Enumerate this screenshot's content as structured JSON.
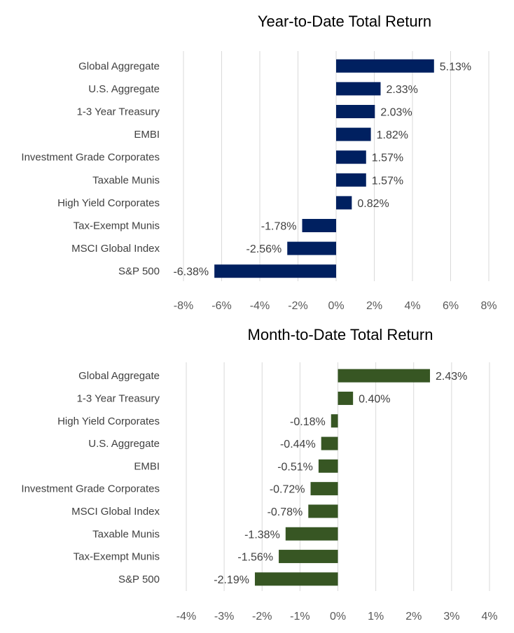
{
  "chart_data": [
    {
      "type": "bar",
      "orientation": "horizontal",
      "title": "Year-to-Date Total Return",
      "categories": [
        "Global Aggregate",
        "U.S. Aggregate",
        "1-3 Year Treasury",
        "EMBI",
        "Investment Grade Corporates",
        "Taxable Munis",
        "High Yield Corporates",
        "Tax-Exempt Munis",
        "MSCI Global Index",
        "S&P 500"
      ],
      "values": [
        5.13,
        2.33,
        2.03,
        1.82,
        1.57,
        1.57,
        0.82,
        -1.78,
        -2.56,
        -6.38
      ],
      "data_labels": [
        "5.13%",
        "2.33%",
        "2.03%",
        "1.82%",
        "1.57%",
        "1.57%",
        "0.82%",
        "-1.78%",
        "-2.56%",
        "-6.38%"
      ],
      "xlim": [
        -8,
        8
      ],
      "xticks": [
        -8,
        -6,
        -4,
        -2,
        0,
        2,
        4,
        6,
        8
      ],
      "xtick_labels": [
        "-8%",
        "-6%",
        "-4%",
        "-2%",
        "0%",
        "2%",
        "4%",
        "6%",
        "8%"
      ],
      "xlabel": "",
      "ylabel": "",
      "grid": true,
      "legend": "none",
      "color": "#002060"
    },
    {
      "type": "bar",
      "orientation": "horizontal",
      "title": "Month-to-Date Total Return",
      "categories": [
        "Global Aggregate",
        "1-3 Year Treasury",
        "High Yield Corporates",
        "U.S. Aggregate",
        "EMBI",
        "Investment Grade Corporates",
        "MSCI Global Index",
        "Taxable Munis",
        "Tax-Exempt Munis",
        "S&P 500"
      ],
      "values": [
        2.43,
        0.4,
        -0.18,
        -0.44,
        -0.51,
        -0.72,
        -0.78,
        -1.38,
        -1.56,
        -2.19
      ],
      "data_labels": [
        "2.43%",
        "0.40%",
        "-0.18%",
        "-0.44%",
        "-0.51%",
        "-0.72%",
        "-0.78%",
        "-1.38%",
        "-1.56%",
        "-2.19%"
      ],
      "xlim": [
        -4,
        4
      ],
      "xticks": [
        -4,
        -3,
        -2,
        -1,
        0,
        1,
        2,
        3,
        4
      ],
      "xtick_labels": [
        "-4%",
        "-3%",
        "-2%",
        "-1%",
        "0%",
        "1%",
        "2%",
        "3%",
        "4%"
      ],
      "xlabel": "",
      "ylabel": "",
      "grid": true,
      "legend": "none",
      "color": "#375623"
    }
  ]
}
